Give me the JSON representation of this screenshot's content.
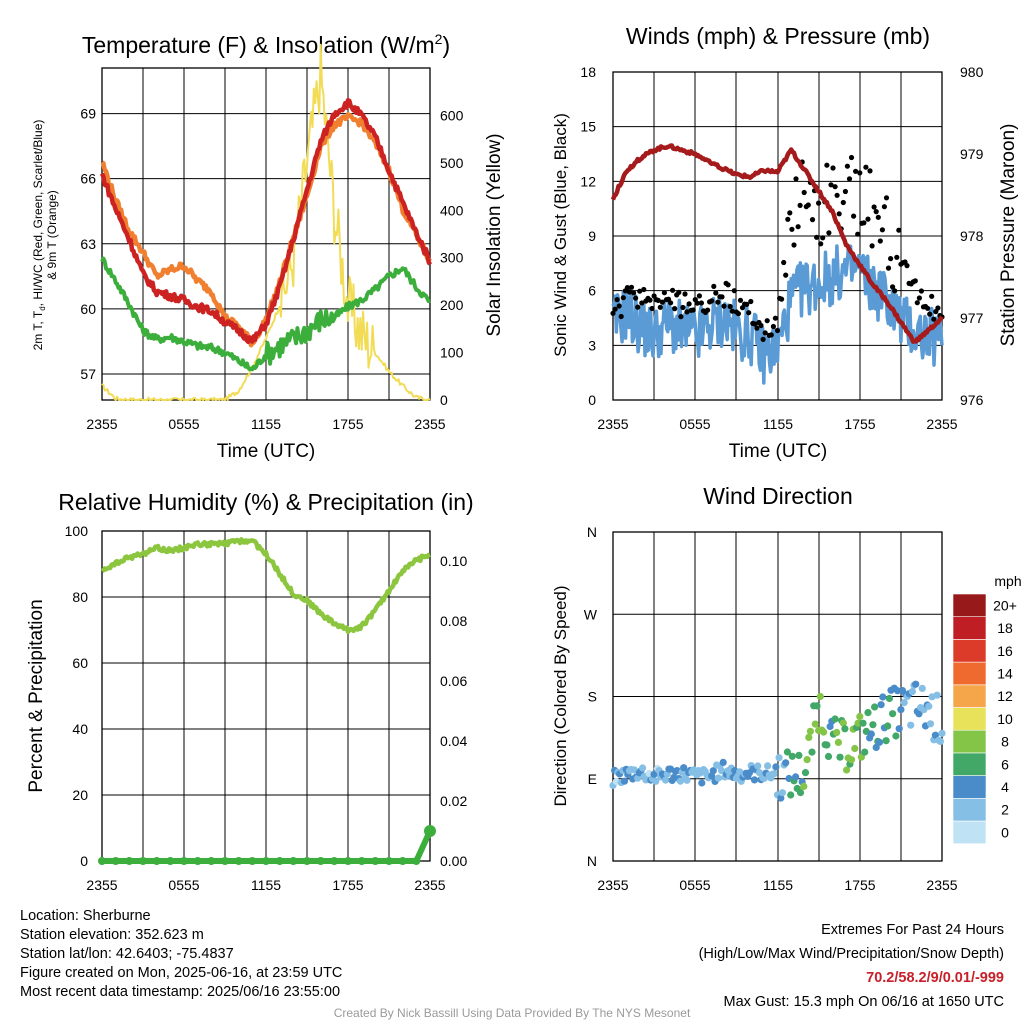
{
  "chart_data": [
    {
      "id": "temp",
      "type": "line",
      "title": "Temperature (F) & Insolation (W/m²)",
      "ylabel": "2m T, Td, HI/WC (Red, Green, Scarlet/Blue) & 9m T (Orange)",
      "ylabel_right": "Solar Insolation (Yellow)",
      "xlabel": "Time (UTC)",
      "x_ticks": [
        "2355",
        "0555",
        "1155",
        "1755",
        "2355"
      ],
      "y_ticks": [
        "57",
        "60",
        "63",
        "66",
        "69"
      ],
      "y_right_ticks": [
        "0",
        "100",
        "200",
        "300",
        "400",
        "500",
        "600"
      ],
      "ylim": [
        55.8,
        71.1
      ],
      "ylim_right": [
        0,
        700
      ],
      "hours": [
        0,
        1,
        2,
        3,
        4,
        5,
        6,
        7,
        8,
        9,
        10,
        11,
        12,
        13,
        14,
        15,
        16,
        17,
        18,
        19,
        20,
        21,
        22,
        23,
        24
      ],
      "series": [
        {
          "key": "orange",
          "axis": "left",
          "color": "#f07f30",
          "width": 4.5,
          "values": [
            66.8,
            65,
            63.6,
            62.6,
            61.5,
            61.8,
            62,
            61.3,
            60.8,
            59.6,
            59.2,
            58.4,
            59.5,
            61.2,
            63.3,
            65.2,
            67.5,
            68.5,
            68.8,
            68.6,
            67.6,
            66.4,
            64.6,
            63.4,
            62.2
          ]
        },
        {
          "key": "red",
          "axis": "left",
          "color": "#cc2222",
          "width": 4.5,
          "values": [
            66.2,
            64.6,
            63.2,
            61.6,
            60.8,
            60.6,
            60.4,
            60.1,
            59.9,
            59.4,
            59.0,
            58.5,
            59.3,
            61.0,
            63.2,
            65.5,
            67.7,
            69.0,
            69.5,
            68.9,
            67.9,
            66.4,
            64.9,
            63.5,
            62.2
          ]
        },
        {
          "key": "green",
          "axis": "left",
          "color": "#3cae3c",
          "width": 4,
          "values": [
            62.3,
            61.3,
            60.2,
            59.0,
            58.6,
            58.7,
            58.5,
            58.3,
            58.2,
            58.0,
            57.6,
            57.2,
            57.9,
            58.3,
            58.6,
            59.0,
            59.5,
            59.6,
            60.1,
            60.4,
            60.9,
            61.5,
            61.9,
            61.0,
            60.3
          ]
        },
        {
          "key": "yellow",
          "axis": "right",
          "color": "#f2dc55",
          "width": 2,
          "values": [
            30,
            3,
            0,
            0,
            0,
            0,
            0,
            0,
            0,
            0,
            20,
            70,
            130,
            200,
            300,
            500,
            690,
            400,
            200,
            140,
            100,
            60,
            30,
            5,
            0
          ]
        }
      ]
    },
    {
      "id": "wind",
      "type": "scatter",
      "title": "Winds (mph) & Pressure (mb)",
      "ylabel": "Sonic Wind & Gust (Blue, Black)",
      "ylabel_right": "Station Pressure (Maroon)",
      "xlabel": "Time (UTC)",
      "x_ticks": [
        "2355",
        "0555",
        "1155",
        "1755",
        "2355"
      ],
      "y_ticks": [
        "0",
        "3",
        "6",
        "9",
        "12",
        "15",
        "18"
      ],
      "y_right_ticks": [
        "976",
        "977",
        "978",
        "979",
        "980"
      ],
      "ylim": [
        0,
        18
      ],
      "ylim_right": [
        976,
        980
      ],
      "hours": [
        0,
        1,
        2,
        3,
        4,
        5,
        6,
        7,
        8,
        9,
        10,
        11,
        12,
        13,
        14,
        15,
        16,
        17,
        18,
        19,
        20,
        21,
        22,
        23,
        24
      ],
      "wind_values": [
        4.2,
        4.8,
        4.0,
        3.6,
        4.2,
        3.8,
        3.4,
        4.0,
        4.5,
        3.8,
        3.6,
        2.5,
        2.8,
        5.5,
        6.2,
        6.4,
        6.8,
        7.0,
        7.2,
        6.1,
        5.6,
        4.4,
        3.8,
        3.5,
        3.3
      ],
      "gust_values": [
        4.6,
        5.5,
        5.7,
        5.4,
        5.5,
        5.2,
        5.0,
        5.6,
        5.9,
        5.2,
        5.0,
        3.6,
        4.2,
        10.5,
        11.2,
        10.8,
        10.8,
        11.5,
        11.0,
        10.4,
        8.8,
        7.5,
        6.0,
        5.2,
        4.8
      ],
      "pressure_values": [
        978.45,
        978.8,
        978.95,
        979.05,
        979.1,
        979.05,
        979.0,
        978.9,
        978.82,
        978.75,
        978.72,
        978.8,
        978.78,
        979.05,
        978.8,
        978.55,
        978.3,
        977.9,
        977.65,
        977.4,
        977.2,
        976.95,
        976.7,
        976.85,
        977.0
      ],
      "wind_color": "#5b9bd5",
      "gust_color": "#000000",
      "pressure_color": "#a51a1a"
    },
    {
      "id": "rh",
      "type": "line",
      "title": "Relative Humidity (%) & Precipitation (in)",
      "ylabel": "Percent & Precipitation",
      "ylim": [
        0,
        100
      ],
      "ylim_right": [
        0,
        0.11
      ],
      "x_ticks": [
        "2355",
        "0555",
        "1155",
        "1755",
        "2355"
      ],
      "y_ticks": [
        "0",
        "20",
        "40",
        "60",
        "80",
        "100"
      ],
      "y_right_ticks": [
        "0.00",
        "0.02",
        "0.04",
        "0.06",
        "0.08",
        "0.10"
      ],
      "hours": [
        0,
        1,
        2,
        3,
        4,
        5,
        6,
        7,
        8,
        9,
        10,
        11,
        12,
        13,
        14,
        15,
        16,
        17,
        18,
        19,
        20,
        21,
        22,
        23,
        24
      ],
      "rh_values": [
        88,
        90,
        92,
        93,
        95,
        94,
        95,
        96,
        96,
        96,
        97,
        97,
        93,
        87,
        81,
        79,
        75,
        72,
        70,
        71,
        76,
        82,
        88,
        91,
        93
      ],
      "precip_values": [
        0,
        0,
        0,
        0,
        0,
        0,
        0,
        0,
        0,
        0,
        0,
        0,
        0,
        0,
        0,
        0,
        0,
        0,
        0,
        0,
        0,
        0,
        0,
        0,
        0.01
      ],
      "rh_color": "#8cc63f",
      "precip_color": "#3cae3c"
    },
    {
      "id": "dir",
      "type": "scatter",
      "title": "Wind Direction",
      "ylabel": "Direction (Colored By Speed)",
      "x_ticks": [
        "2355",
        "0555",
        "1155",
        "1755",
        "2355"
      ],
      "y_ticks": [
        "N",
        "E",
        "S",
        "W",
        "N"
      ],
      "ylim": [
        0,
        360
      ],
      "direction_values": [
        90,
        95,
        98,
        92,
        95,
        96,
        93,
        92,
        100,
        95,
        97,
        96,
        95,
        94,
        95,
        170,
        130,
        125,
        135,
        145,
        160,
        165,
        170,
        165,
        150
      ],
      "speed_values": [
        2,
        3,
        3,
        2,
        3,
        3,
        2,
        3,
        3,
        3,
        3,
        3,
        2,
        5,
        6,
        7,
        6,
        7,
        7,
        5,
        5,
        4,
        3,
        3,
        3
      ],
      "colorbar": {
        "label": "mph",
        "ticks": [
          "0",
          "2",
          "4",
          "6",
          "8",
          "10",
          "12",
          "14",
          "16",
          "18",
          "20+"
        ],
        "colors": [
          "#bfe3f5",
          "#86bfe5",
          "#4a8cc9",
          "#41a868",
          "#84c447",
          "#e8e15a",
          "#f6a64a",
          "#ee6a2e",
          "#dd3b2a",
          "#bf1f24",
          "#971919"
        ]
      }
    }
  ],
  "info": {
    "location": "Location: Sherburne",
    "elevation": "Station elevation: 352.623 m",
    "latlon": "Station lat/lon: 42.6403; -75.4837",
    "created": "Figure created on Mon, 2025-06-16, at 23:59 UTC",
    "recent": "Most recent data timestamp: 2025/06/16 23:55:00"
  },
  "extremes": {
    "title": "Extremes For Past 24 Hours",
    "subtitle": "(High/Low/Max Wind/Precipitation/Snow Depth)",
    "values": "70.2/58.2/9/0.01/-999",
    "max_gust": "Max Gust: 15.3 mph On 06/16 at 1650 UTC"
  },
  "footer": "Created By Nick Bassill Using Data Provided By The NYS Mesonet"
}
